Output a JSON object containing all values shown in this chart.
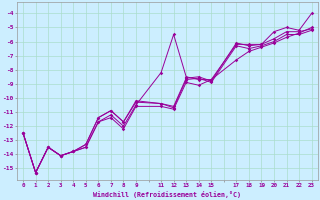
{
  "xlabel": "Windchill (Refroidissement éolien,°C)",
  "background_color": "#cceeff",
  "grid_color": "#aaddcc",
  "line_color": "#990099",
  "xlim": [
    -0.5,
    23.5
  ],
  "ylim": [
    -15.8,
    -3.2
  ],
  "yticks": [
    -15,
    -14,
    -13,
    -12,
    -11,
    -10,
    -9,
    -8,
    -7,
    -6,
    -5,
    -4
  ],
  "xtick_positions": [
    0,
    1,
    2,
    3,
    4,
    5,
    6,
    7,
    8,
    9,
    11,
    12,
    13,
    14,
    15,
    17,
    18,
    19,
    20,
    21,
    22,
    23
  ],
  "xtick_labels": [
    "0",
    "1",
    "2",
    "3",
    "4",
    "5",
    "6",
    "7",
    "8",
    "9",
    "11",
    "12",
    "13",
    "14",
    "15",
    "17",
    "18",
    "19",
    "20",
    "21",
    "22",
    "23"
  ],
  "lines_x": [
    [
      0,
      1,
      2,
      3,
      4,
      5,
      6,
      7,
      8,
      9,
      11,
      12,
      13,
      14,
      15,
      17,
      18,
      19,
      20,
      21,
      22,
      23
    ],
    [
      0,
      1,
      2,
      3,
      4,
      5,
      6,
      7,
      8,
      9,
      11,
      12,
      13,
      14,
      15,
      17,
      18,
      19,
      20,
      21,
      22,
      23
    ],
    [
      0,
      1,
      2,
      3,
      4,
      5,
      6,
      7,
      8,
      9,
      11,
      12,
      13,
      14,
      15,
      17,
      18,
      19,
      20,
      21,
      22,
      23
    ],
    [
      0,
      1,
      2,
      3,
      4,
      5,
      6,
      7,
      8,
      9,
      11,
      12,
      13,
      14,
      15,
      17,
      18,
      19,
      20,
      21,
      22,
      23
    ]
  ],
  "lines_y": [
    [
      -12.5,
      -15.3,
      -13.5,
      -14.1,
      -13.8,
      -13.5,
      -11.7,
      -11.2,
      -12.0,
      -10.5,
      -8.2,
      -5.5,
      -8.5,
      -8.7,
      -8.7,
      -6.2,
      -6.2,
      -6.2,
      -5.3,
      -5.0,
      -5.2,
      -4.0
    ],
    [
      -12.5,
      -15.3,
      -13.5,
      -14.1,
      -13.8,
      -13.3,
      -11.4,
      -10.9,
      -11.7,
      -10.2,
      -10.4,
      -10.6,
      -8.6,
      -8.5,
      -8.8,
      -6.1,
      -6.3,
      -6.2,
      -5.8,
      -5.3,
      -5.3,
      -5.1
    ],
    [
      -12.5,
      -15.3,
      -13.5,
      -14.1,
      -13.8,
      -13.3,
      -11.4,
      -10.9,
      -11.7,
      -10.3,
      -10.4,
      -10.7,
      -8.7,
      -8.6,
      -8.9,
      -6.3,
      -6.5,
      -6.3,
      -6.0,
      -5.5,
      -5.5,
      -5.2
    ],
    [
      -12.5,
      -15.3,
      -13.5,
      -14.1,
      -13.8,
      -13.5,
      -11.7,
      -11.4,
      -12.2,
      -10.6,
      -10.6,
      -10.8,
      -8.9,
      -9.1,
      -8.7,
      -7.3,
      -6.7,
      -6.4,
      -6.1,
      -5.7,
      -5.4,
      -5.0
    ]
  ]
}
